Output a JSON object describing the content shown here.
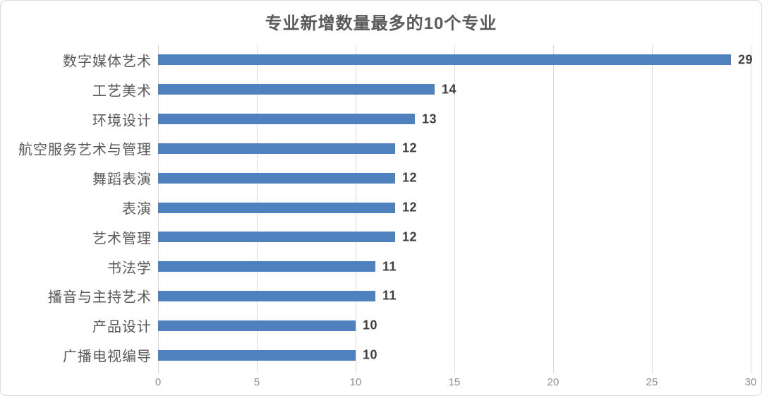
{
  "chart_data": {
    "type": "bar",
    "orientation": "horizontal",
    "title": "专业新增数量最多的10个专业",
    "categories": [
      "数字媒体艺术",
      "工艺美术",
      "环境设计",
      "航空服务艺术与管理",
      "舞蹈表演",
      "表演",
      "艺术管理",
      "书法学",
      "播音与主持艺术",
      "产品设计",
      "广播电视编导"
    ],
    "values": [
      29,
      14,
      13,
      12,
      12,
      12,
      12,
      11,
      11,
      10,
      10
    ],
    "xlabel": "",
    "ylabel": "",
    "xlim": [
      0,
      30
    ],
    "x_ticks": [
      0,
      5,
      10,
      15,
      20,
      25,
      30
    ],
    "grid": true,
    "data_labels": true,
    "legend": false,
    "colors": {
      "bar": "#4E81BD",
      "title": "#595959",
      "category_label": "#595959",
      "value_label": "#3F3F3F",
      "tick_label": "#8C8C8C",
      "gridline": "#D9D9D9",
      "border": "#D9D9D9",
      "background": "#FFFFFF"
    }
  }
}
